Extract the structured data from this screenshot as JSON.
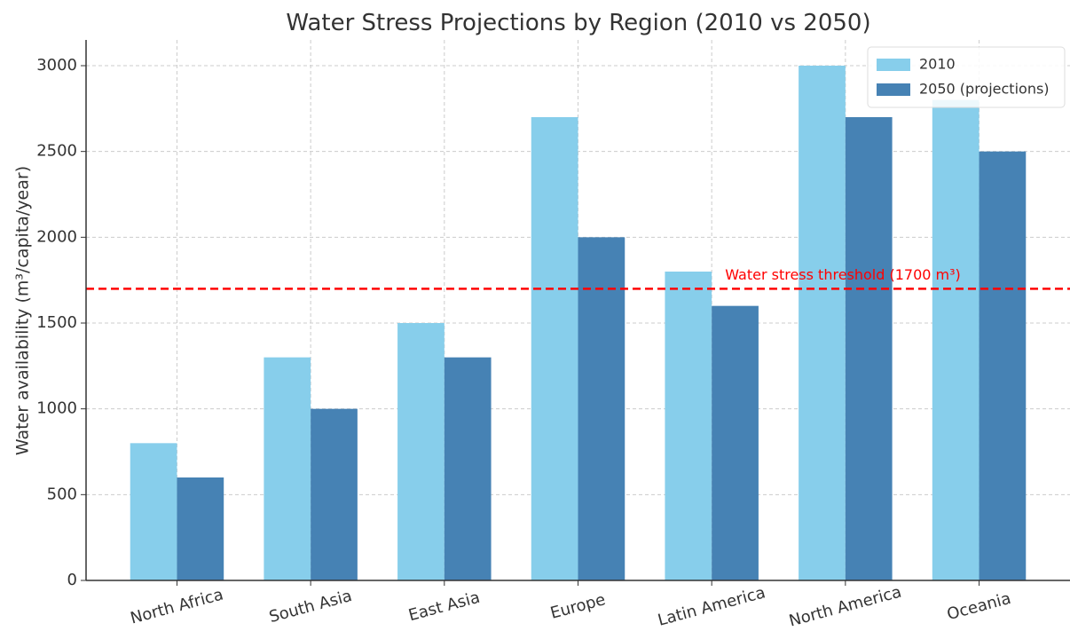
{
  "chart_data": {
    "type": "bar",
    "title": "Water Stress Projections by Region (2010 vs 2050)",
    "y_label": "Water availability (m³/capita/year)",
    "categories": [
      "North Africa",
      "South Asia",
      "East Asia",
      "Europe",
      "Latin America",
      "North America",
      "Oceania"
    ],
    "series": [
      {
        "name": "2010",
        "color": "#87ceeb",
        "values": [
          800,
          1300,
          1500,
          2700,
          1800,
          3000,
          2800
        ]
      },
      {
        "name": "2050 (projections)",
        "color": "#4682b4",
        "values": [
          600,
          1000,
          1300,
          2000,
          1600,
          2700,
          2500
        ]
      }
    ],
    "threshold": {
      "value": 1700,
      "label": "Water stress threshold (1700 m³)",
      "color": "red"
    },
    "ylim": [
      0,
      3150
    ],
    "yticks": [
      0,
      500,
      1000,
      1500,
      2000,
      2500,
      3000
    ],
    "grid": true,
    "legend": "upper right"
  }
}
